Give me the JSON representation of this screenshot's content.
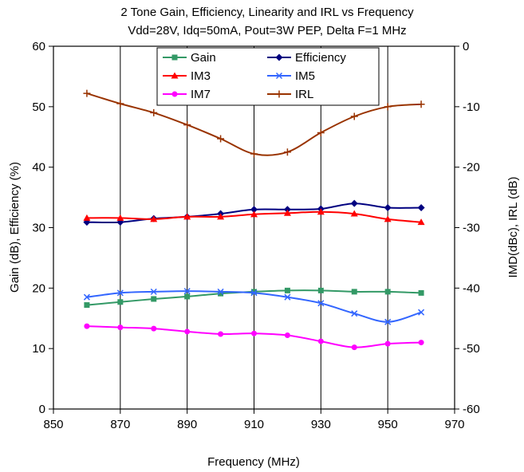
{
  "chart_data": {
    "type": "line",
    "title": "2 Tone Gain, Efficiency, Linearity and IRL vs Frequency",
    "subtitle": "Vdd=28V, Idq=50mA, Pout=3W PEP, Delta F=1 MHz",
    "xlabel": "Frequency (MHz)",
    "ylabel_left": "Gain (dB), Efficiency (%)",
    "ylabel_right": "IMD(dBc), IRL (dB)",
    "xlim": [
      850,
      970
    ],
    "ylim_left": [
      0,
      60
    ],
    "ylim_right": [
      -60,
      0
    ],
    "x_ticks": [
      850,
      870,
      890,
      910,
      930,
      950,
      970
    ],
    "y_left_ticks": [
      0,
      10,
      20,
      30,
      40,
      50,
      60
    ],
    "y_right_ticks": [
      -60,
      -50,
      -40,
      -30,
      -20,
      -10,
      0
    ],
    "x_tick_labels": [
      "850",
      "870",
      "890",
      "910",
      "930",
      "950",
      "970"
    ],
    "y_left_tick_labels": [
      "0",
      "10",
      "20",
      "30",
      "40",
      "50",
      "60"
    ],
    "y_right_tick_labels": [
      "-60",
      "-50",
      "-40",
      "-30",
      "-20",
      "-10",
      "0"
    ],
    "grid": "vertical",
    "legend_position": "top-center",
    "x": [
      860,
      870,
      880,
      890,
      900,
      910,
      920,
      930,
      940,
      950,
      960
    ],
    "series": [
      {
        "name": "Gain",
        "axis": "left",
        "color": "#339966",
        "marker": "square",
        "values": [
          17.2,
          17.7,
          18.2,
          18.6,
          19.1,
          19.4,
          19.6,
          19.6,
          19.4,
          19.4,
          19.2
        ]
      },
      {
        "name": "Efficiency",
        "axis": "left",
        "color": "#000080",
        "marker": "diamond",
        "values": [
          30.9,
          30.9,
          31.5,
          31.8,
          32.3,
          33.0,
          33.0,
          33.1,
          34.0,
          33.3,
          33.3
        ]
      },
      {
        "name": "IM3",
        "axis": "right",
        "color": "#ff0000",
        "marker": "triangle",
        "values": [
          -28.4,
          -28.4,
          -28.6,
          -28.2,
          -28.2,
          -27.8,
          -27.6,
          -27.4,
          -27.7,
          -28.6,
          -29.1
        ]
      },
      {
        "name": "IM5",
        "axis": "right",
        "color": "#3366ff",
        "marker": "x",
        "values": [
          -41.5,
          -40.8,
          -40.6,
          -40.5,
          -40.6,
          -40.8,
          -41.5,
          -42.5,
          -44.2,
          -45.6,
          -44.0
        ]
      },
      {
        "name": "IM7",
        "axis": "right",
        "color": "#ff00ff",
        "marker": "circle",
        "values": [
          -46.3,
          -46.5,
          -46.7,
          -47.2,
          -47.6,
          -47.5,
          -47.8,
          -48.8,
          -49.8,
          -49.2,
          -49.0
        ]
      },
      {
        "name": "IRL",
        "axis": "right",
        "color": "#993300",
        "marker": "plus",
        "values": [
          -7.8,
          -9.5,
          -11.0,
          -13.0,
          -15.3,
          -17.8,
          -17.5,
          -14.3,
          -11.6,
          -10.0,
          -9.6
        ]
      }
    ]
  }
}
